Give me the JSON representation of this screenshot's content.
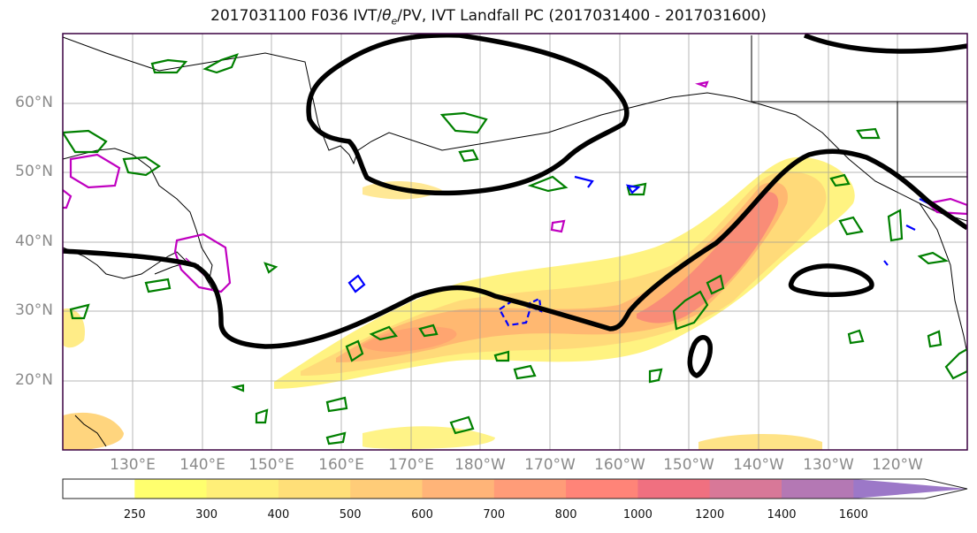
{
  "title": {
    "prefix": "2017031100 F036 IVT/",
    "theta": "θ",
    "theta_sub": "e",
    "suffix": "/PV, IVT Landfall PC (2017031400 - 2017031600)"
  },
  "map": {
    "projection": "PlateCarree",
    "lon_range": [
      120,
      250
    ],
    "lat_range": [
      10,
      70
    ],
    "lat_labels": [
      "20°N",
      "30°N",
      "40°N",
      "50°N",
      "60°N"
    ],
    "lon_labels": [
      "130°E",
      "140°E",
      "150°E",
      "160°E",
      "170°E",
      "180°W",
      "170°W",
      "160°W",
      "150°W",
      "140°W",
      "130°W",
      "120°W"
    ],
    "gridlines": true,
    "layers": [
      {
        "name": "IVT filled contours",
        "colormap": "yellow-orange-red-purple"
      },
      {
        "name": "IVT landfall PC contour",
        "color": "#000000"
      },
      {
        "name": "theta-e contours",
        "color": "#008000"
      },
      {
        "name": "PV contours",
        "color": "#c000c0"
      },
      {
        "name": "negative contours",
        "color": "#0000ff"
      }
    ]
  },
  "colorbar": {
    "ticks": [
      "250",
      "300",
      "400",
      "500",
      "600",
      "700",
      "800",
      "1000",
      "1200",
      "1400",
      "1600"
    ],
    "colors": [
      "#ffff6e",
      "#ffef78",
      "#ffdf78",
      "#ffcc78",
      "#ffb478",
      "#ff9c78",
      "#ff8478",
      "#f07080",
      "#d87898",
      "#b478b4",
      "#9c78c8",
      "#9c78c8"
    ],
    "extend": "max"
  }
}
